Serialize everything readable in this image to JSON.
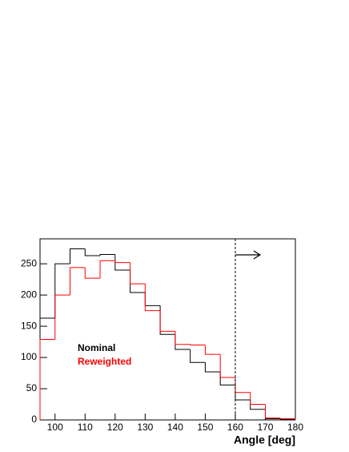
{
  "chart_data": {
    "type": "histogram",
    "x_label": "Angle [deg]",
    "bins": [
      95,
      100,
      105,
      110,
      115,
      120,
      125,
      130,
      135,
      140,
      145,
      150,
      155,
      160,
      165,
      170,
      175,
      180
    ],
    "series": [
      {
        "name": "Nominal",
        "color": "#000000",
        "values": [
          163,
          250,
          274,
          263,
          265,
          240,
          204,
          183,
          137,
          113,
          92,
          77,
          56,
          32,
          17,
          2,
          1
        ]
      },
      {
        "name": "Reweighted",
        "color": "#ff0000",
        "values": [
          129,
          200,
          244,
          227,
          255,
          252,
          218,
          175,
          142,
          121,
          120,
          105,
          68,
          44,
          25,
          3,
          2
        ]
      }
    ],
    "xlim": [
      95,
      180
    ],
    "xticks": [
      100,
      110,
      120,
      130,
      140,
      150,
      160,
      170,
      180
    ],
    "ylim": [
      0,
      290
    ],
    "yticks": [
      0,
      50,
      100,
      150,
      200,
      250
    ],
    "cut": 160
  }
}
